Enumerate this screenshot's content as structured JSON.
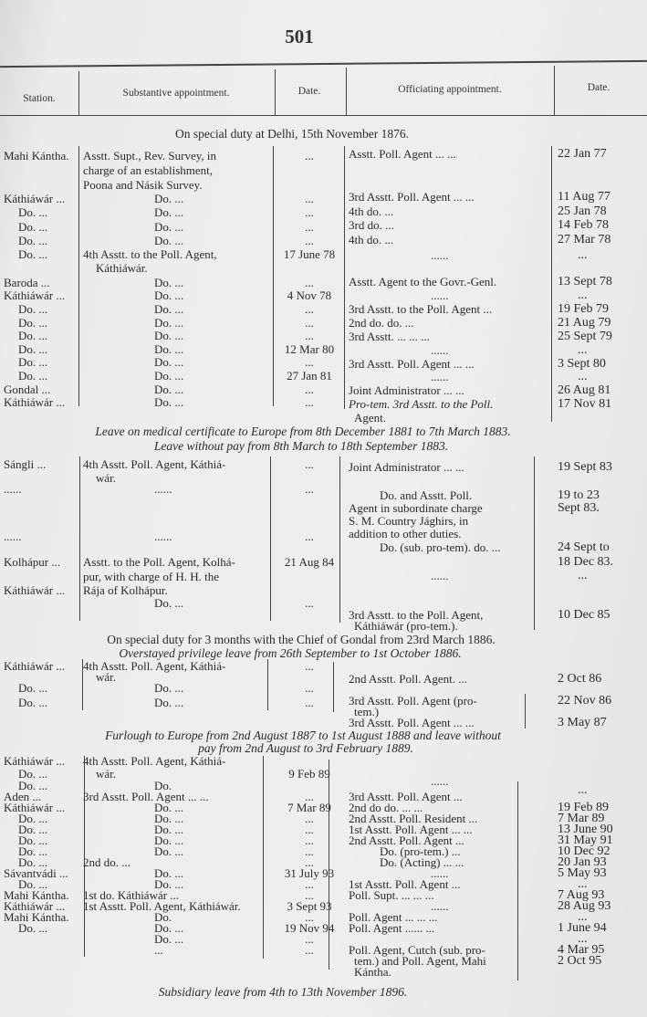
{
  "page_number": "501",
  "headers": {
    "station": "Station.",
    "substantive": "Substantive appointment.",
    "date1": "Date.",
    "officiating": "Officiating appointment.",
    "date2": "Date."
  },
  "notes": [
    "On special duty at Delhi, 15th November 1876.",
    "Leave on medical certificate to Europe from 8th December 1881 to 7th March 1883.",
    "Leave without pay from 8th March to 18th September 1883.",
    "On special duty for 3 months with the Chief of Gondal from 23rd March 1886.",
    "Overstayed privilege leave from 26th September to 1st October 1886.",
    "Furlough to Europe from 2nd August 1887 to 1st August 1888 and leave without",
    "pay from 2nd August to 3rd February 1889.",
    "Subsidiary leave from 4th to 13th November 1896."
  ],
  "left_rows": [
    [
      "Mahi Kántha.",
      "Asstt. Supt., Rev. Survey, in",
      "..."
    ],
    [
      "",
      "charge of an establishment,",
      ""
    ],
    [
      "",
      "Poona and Násik Survey.",
      ""
    ],
    [
      "Káthiáwár ...",
      "Do. ...",
      "..."
    ],
    [
      "Do. ...",
      "Do. ...",
      "..."
    ],
    [
      "Do. ...",
      "Do. ...",
      "..."
    ],
    [
      "Do. ...",
      "Do. ...",
      "..."
    ],
    [
      "Do. ...",
      "4th Asstt. to the Poll. Agent,",
      "17 June 78"
    ],
    [
      "",
      "Káthiáwár.",
      ""
    ],
    [
      "Baroda ...",
      "Do. ...",
      "..."
    ],
    [
      "Káthiáwár ...",
      "Do. ...",
      "4 Nov 78"
    ],
    [
      "Do. ...",
      "Do. ...",
      "..."
    ],
    [
      "Do. ...",
      "Do. ...",
      "..."
    ],
    [
      "Do. ...",
      "Do. ...",
      "..."
    ],
    [
      "Do. ...",
      "Do. ...",
      "12 Mar 80"
    ],
    [
      "Do. ...",
      "Do. ...",
      "..."
    ],
    [
      "Do. ...",
      "Do. ...",
      "27 Jan 81"
    ],
    [
      "Gondal ...",
      "Do. ...",
      "..."
    ],
    [
      "Káthiáwár ...",
      "Do. ...",
      "..."
    ],
    [
      "Sángli ...",
      "4th Asstt. Poll. Agent, Káthiá-",
      "..."
    ],
    [
      "",
      "wár.",
      ""
    ],
    [
      "......",
      "......",
      "..."
    ],
    [
      "......",
      "......",
      "..."
    ],
    [
      "Kolhápur ...",
      "Asstt. to the Poll. Agent, Kolhá-",
      "21 Aug 84"
    ],
    [
      "",
      "pur, with charge of H. H. the",
      ""
    ],
    [
      "Káthiáwár ...",
      "Rája of Kolhápur.",
      ""
    ],
    [
      "",
      "Do. ...",
      "..."
    ],
    [
      "Káthiáwár ...",
      "4th Asstt. Poll. Agent, Káthiá-",
      "..."
    ],
    [
      "",
      "wár.",
      ""
    ],
    [
      "Do. ...",
      "Do. ...",
      "..."
    ],
    [
      "Do. ...",
      "Do. ...",
      "..."
    ],
    [
      "Káthiáwár ...",
      "4th Asstt. Poll. Agent, Káthiá-",
      ""
    ],
    [
      "Do. ...",
      "wár.",
      "9 Feb 89"
    ],
    [
      "Do. ...",
      "Do.",
      ""
    ],
    [
      "Aden ...",
      "3rd Asstt. Poll. Agent ... ...",
      "..."
    ],
    [
      "Káthiáwár ...",
      "Do. ...",
      "7 Mar 89"
    ],
    [
      "Do. ...",
      "Do. ...",
      "..."
    ],
    [
      "Do. ...",
      "Do. ...",
      "..."
    ],
    [
      "Do. ...",
      "Do. ...",
      "..."
    ],
    [
      "Do. ...",
      "Do. ...",
      "..."
    ],
    [
      "Do. ...",
      "2nd do. ...",
      "..."
    ],
    [
      "Sávantvádi ...",
      "Do. ...",
      "31 July 93"
    ],
    [
      "Do. ...",
      "Do. ...",
      "..."
    ],
    [
      "Mahi Kántha.",
      "1st do. Káthiáwár ...",
      "..."
    ],
    [
      "Káthiáwár ...",
      "1st Asstt. Poll. Agent, Káthiáwár.",
      "3 Sept 93"
    ],
    [
      "Mahi Kántha.",
      "Do.",
      "..."
    ],
    [
      "Do. ...",
      "Do. ...",
      "19 Nov 94"
    ],
    [
      "",
      "Do. ...",
      "..."
    ],
    [
      "",
      "...",
      "..."
    ]
  ],
  "right_rows": [
    [
      "Asstt. Poll. Agent ... ...",
      "22 Jan 77"
    ],
    [
      "3rd Asstt. Poll. Agent ... ...",
      "11 Aug 77"
    ],
    [
      "4th do. ...",
      "25 Jan 78"
    ],
    [
      "3rd do. ...",
      "14 Feb 78"
    ],
    [
      "4th do. ...",
      "27 Mar 78"
    ],
    [
      "......",
      "..."
    ],
    [
      "Asstt. Agent to the Govr.-Genl.",
      "13 Sept 78"
    ],
    [
      "......",
      "..."
    ],
    [
      "3rd Asstt. to the Poll. Agent ...",
      "19 Feb 79"
    ],
    [
      "2nd do. do. ...",
      "21 Aug 79"
    ],
    [
      "3rd Asstt. ... ... ...",
      "25 Sept 79"
    ],
    [
      "......",
      "..."
    ],
    [
      "3rd Asstt. Poll. Agent ... ...",
      "3 Sept 80"
    ],
    [
      "......",
      "..."
    ],
    [
      "Joint Administrator ... ...",
      "26 Aug 81"
    ],
    [
      "Pro-tem. 3rd Asstt. to the Poll.",
      "17 Nov 81"
    ],
    [
      "Agent.",
      ""
    ],
    [
      "Joint Administrator ... ...",
      "19 Sept 83"
    ],
    [
      "Do. and Asstt. Poll.",
      "19 to 23"
    ],
    [
      "Agent in subordinate charge",
      "Sept 83."
    ],
    [
      "S. M. Country Jághirs, in",
      ""
    ],
    [
      "addition to other duties.",
      ""
    ],
    [
      "Do. (sub. pro-tem). do. ...",
      "24 Sept to"
    ],
    [
      "",
      "18 Dec 83."
    ],
    [
      "......",
      "..."
    ],
    [
      "3rd Asstt. to the Poll. Agent,",
      "10 Dec 85"
    ],
    [
      "Káthiáwár (pro-tem.).",
      ""
    ],
    [
      "2nd Asstt. Poll. Agent. ...",
      "2 Oct 86"
    ],
    [
      "3rd Asstt. Poll. Agent (pro-",
      "22 Nov 86"
    ],
    [
      "tem.)",
      ""
    ],
    [
      "3rd Asstt. Poll. Agent ... ...",
      "3 May 87"
    ],
    [
      "......",
      ""
    ],
    [
      "",
      "..."
    ],
    [
      "3rd Asstt. Poll. Agent ...",
      ""
    ],
    [
      "2nd do do. ... ...",
      "19 Feb 89"
    ],
    [
      "2nd Asstt. Poll. Resident ...",
      "7 Mar 89"
    ],
    [
      "1st Asstt. Poll. Agent ... ...",
      "13 June 90"
    ],
    [
      "2nd Asstt. Poll. Agent ...",
      "31 May 91"
    ],
    [
      "Do. (pro-tem.) ...",
      "10 Dec 92"
    ],
    [
      "Do. (Acting) ... ...",
      "20 Jan 93"
    ],
    [
      "......",
      "5 May 93"
    ],
    [
      "1st Asstt. Poll. Agent ...",
      "..."
    ],
    [
      "Poll. Supt. ... ... ...",
      "7 Aug 93"
    ],
    [
      "......",
      "28 Aug 93"
    ],
    [
      "Poll. Agent ... ... ...",
      "..."
    ],
    [
      "Poll. Agent ...... ...",
      "1 June 94"
    ],
    [
      "",
      "..."
    ],
    [
      "Poll. Agent, Cutch (sub. pro-",
      "4 Mar 95"
    ],
    [
      "tem.) and Poll. Agent, Mahi",
      "2 Oct 95"
    ],
    [
      "Kántha.",
      ""
    ]
  ]
}
